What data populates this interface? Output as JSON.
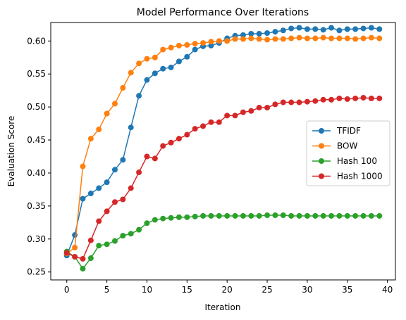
{
  "chart_data": {
    "type": "line",
    "title": "Model Performance Over Iterations",
    "xlabel": "Iteration",
    "ylabel": "Evaluation Score",
    "xlim": [
      -2,
      41
    ],
    "ylim": [
      0.238,
      0.628
    ],
    "xticks": [
      0,
      5,
      10,
      15,
      20,
      25,
      30,
      35,
      40
    ],
    "yticks": [
      0.25,
      0.3,
      0.35,
      0.4,
      0.45,
      0.5,
      0.55,
      0.6
    ],
    "ytick_labels": [
      "0.25",
      "0.30",
      "0.35",
      "0.40",
      "0.45",
      "0.50",
      "0.55",
      "0.60"
    ],
    "xtick_labels": [
      "0",
      "5",
      "10",
      "15",
      "20",
      "25",
      "30",
      "35",
      "40"
    ],
    "grid": false,
    "legend_position": "center-right",
    "x": [
      0,
      1,
      2,
      3,
      4,
      5,
      6,
      7,
      8,
      9,
      10,
      11,
      12,
      13,
      14,
      15,
      16,
      17,
      18,
      19,
      20,
      21,
      22,
      23,
      24,
      25,
      26,
      27,
      28,
      29,
      30,
      31,
      32,
      33,
      34,
      35,
      36,
      37,
      38,
      39
    ],
    "series": [
      {
        "name": "TFIDF",
        "color": "#1f77b4",
        "values": [
          0.275,
          0.306,
          0.361,
          0.369,
          0.377,
          0.386,
          0.405,
          0.42,
          0.469,
          0.517,
          0.541,
          0.551,
          0.558,
          0.56,
          0.569,
          0.576,
          0.587,
          0.592,
          0.593,
          0.597,
          0.604,
          0.608,
          0.609,
          0.611,
          0.611,
          0.612,
          0.614,
          0.616,
          0.619,
          0.62,
          0.618,
          0.618,
          0.617,
          0.62,
          0.616,
          0.618,
          0.618,
          0.619,
          0.62,
          0.618
        ]
      },
      {
        "name": "BOW",
        "color": "#ff7f0e",
        "values": [
          0.278,
          0.287,
          0.41,
          0.452,
          0.466,
          0.49,
          0.505,
          0.529,
          0.552,
          0.566,
          0.573,
          0.575,
          0.587,
          0.59,
          0.593,
          0.594,
          0.596,
          0.597,
          0.599,
          0.6,
          0.6,
          0.603,
          0.603,
          0.604,
          0.603,
          0.602,
          0.603,
          0.603,
          0.604,
          0.605,
          0.604,
          0.604,
          0.605,
          0.604,
          0.604,
          0.604,
          0.603,
          0.604,
          0.605,
          0.604
        ]
      },
      {
        "name": "Hash 100",
        "color": "#2ca02c",
        "values": [
          0.281,
          0.273,
          0.255,
          0.271,
          0.29,
          0.292,
          0.297,
          0.305,
          0.308,
          0.314,
          0.324,
          0.329,
          0.331,
          0.332,
          0.333,
          0.333,
          0.334,
          0.335,
          0.335,
          0.335,
          0.335,
          0.335,
          0.335,
          0.335,
          0.335,
          0.336,
          0.336,
          0.336,
          0.335,
          0.335,
          0.335,
          0.335,
          0.335,
          0.335,
          0.335,
          0.335,
          0.335,
          0.335,
          0.335,
          0.335
        ]
      },
      {
        "name": "Hash 1000",
        "color": "#d62728",
        "values": [
          0.279,
          0.273,
          0.27,
          0.298,
          0.327,
          0.342,
          0.356,
          0.36,
          0.377,
          0.401,
          0.425,
          0.422,
          0.441,
          0.446,
          0.452,
          0.458,
          0.467,
          0.471,
          0.477,
          0.477,
          0.487,
          0.487,
          0.492,
          0.494,
          0.499,
          0.499,
          0.504,
          0.507,
          0.507,
          0.507,
          0.508,
          0.509,
          0.511,
          0.511,
          0.513,
          0.512,
          0.513,
          0.514,
          0.513,
          0.513
        ]
      }
    ]
  }
}
